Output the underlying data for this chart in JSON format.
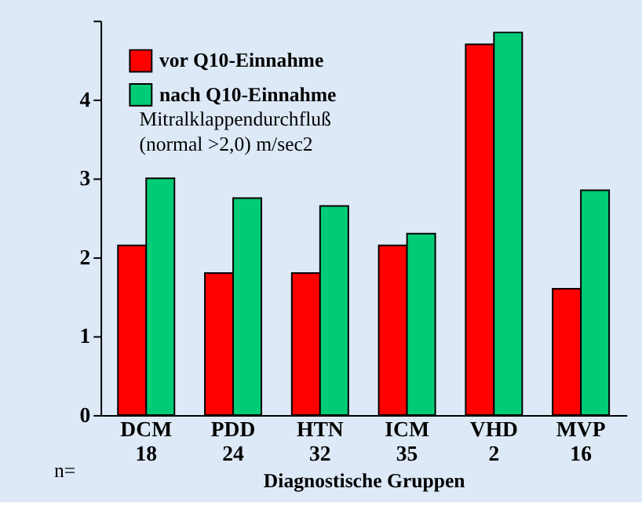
{
  "chart_data": {
    "type": "bar",
    "xlabel": "Diagnostische Gruppen",
    "categories": [
      "DCM\n18",
      "PDD\n24",
      "HTN\n32",
      "ICM\n35",
      "VHD\n2",
      "MVP\n16"
    ],
    "series": [
      {
        "name": "vor Q10-Einnahme",
        "color": "#ff0000",
        "values": [
          2.15,
          1.8,
          1.8,
          2.15,
          4.7,
          1.6
        ]
      },
      {
        "name": "nach Q10-Einnahme",
        "color": "#00cc77",
        "values": [
          3.0,
          2.75,
          2.65,
          2.3,
          4.85,
          2.85
        ]
      }
    ],
    "ylim": [
      0,
      5
    ],
    "yticks": [
      0,
      1,
      2,
      3,
      4,
      {
        "value": 5,
        "label": null
      }
    ],
    "annotations": [
      "Mitralklappendurchfluß",
      "(normal >2,0) m/sec2",
      "n="
    ],
    "legend": "top left",
    "grid": false
  }
}
